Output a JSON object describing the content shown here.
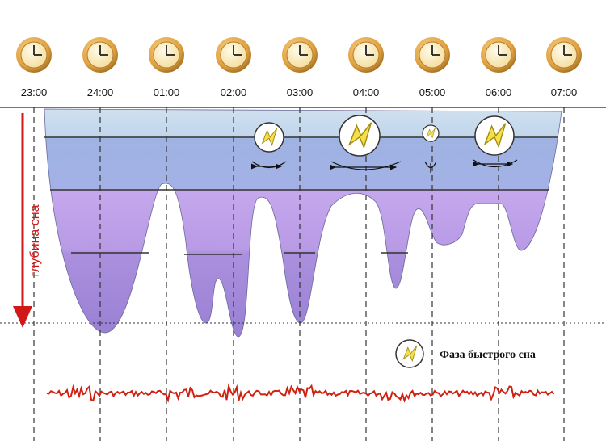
{
  "time_labels": [
    "23:00",
    "24:00",
    "01:00",
    "02:00",
    "03:00",
    "04:00",
    "05:00",
    "06:00",
    "07:00"
  ],
  "axis_label": "глубина сна",
  "legend": {
    "label": "Фаза быстрого сна"
  }
}
